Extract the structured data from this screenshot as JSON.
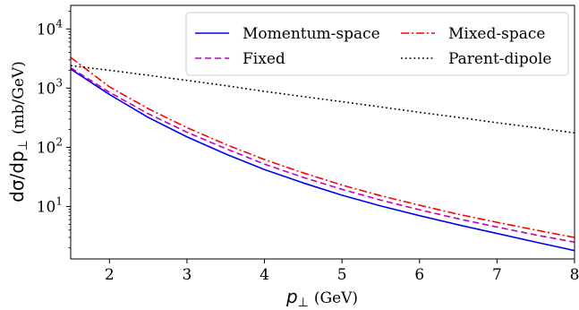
{
  "chart_data": {
    "type": "line",
    "xlabel_symbol": "p",
    "xlabel_subscript": "⊥",
    "xlabel_unit": "(GeV)",
    "ylabel_prefix": "dσ/dp",
    "ylabel_subscript": "⊥",
    "ylabel_unit": "(mb/GeV)",
    "x_scale": "linear",
    "y_scale": "log",
    "xlim": [
      1.5,
      8
    ],
    "ylim": [
      1.3,
      25000
    ],
    "x_ticks": [
      {
        "value": 2,
        "label": "2"
      },
      {
        "value": 3,
        "label": "3"
      },
      {
        "value": 4,
        "label": "4"
      },
      {
        "value": 5,
        "label": "5"
      },
      {
        "value": 6,
        "label": "6"
      },
      {
        "value": 7,
        "label": "7"
      },
      {
        "value": 8,
        "label": "8"
      }
    ],
    "y_ticks": [
      {
        "value": 10,
        "base": "10",
        "exp": "1"
      },
      {
        "value": 100,
        "base": "10",
        "exp": "2"
      },
      {
        "value": 1000,
        "base": "10",
        "exp": "3"
      },
      {
        "value": 10000,
        "base": "10",
        "exp": "4"
      }
    ],
    "grid": false,
    "legend_position": "top-right",
    "x": [
      1.5,
      2,
      2.5,
      3,
      3.5,
      4,
      4.5,
      5,
      5.5,
      6,
      6.5,
      7,
      7.5,
      8
    ],
    "series": [
      {
        "name": "Momentum-space",
        "color": "#0000ee",
        "dash": "solid",
        "values": [
          2100,
          780,
          320,
          150,
          77,
          42,
          25,
          15.5,
          10.2,
          7.0,
          4.9,
          3.5,
          2.5,
          1.8
        ]
      },
      {
        "name": "Fixed",
        "color": "#bf00bf",
        "dash": "dashed",
        "values": [
          2200,
          850,
          370,
          180,
          95,
          52,
          31,
          19.5,
          12.8,
          8.8,
          6.2,
          4.5,
          3.3,
          2.5
        ]
      },
      {
        "name": "Mixed-space",
        "color": "#ff0000",
        "dash": "dashdot",
        "values": [
          3300,
          1050,
          450,
          215,
          112,
          62,
          37,
          23,
          15.2,
          10.5,
          7.4,
          5.4,
          4.0,
          3.0
        ]
      },
      {
        "name": "Parent-dipole",
        "color": "#000000",
        "dash": "dotted",
        "values": [
          2400,
          2000,
          1650,
          1350,
          1100,
          880,
          720,
          590,
          480,
          390,
          320,
          260,
          215,
          175
        ]
      }
    ]
  }
}
